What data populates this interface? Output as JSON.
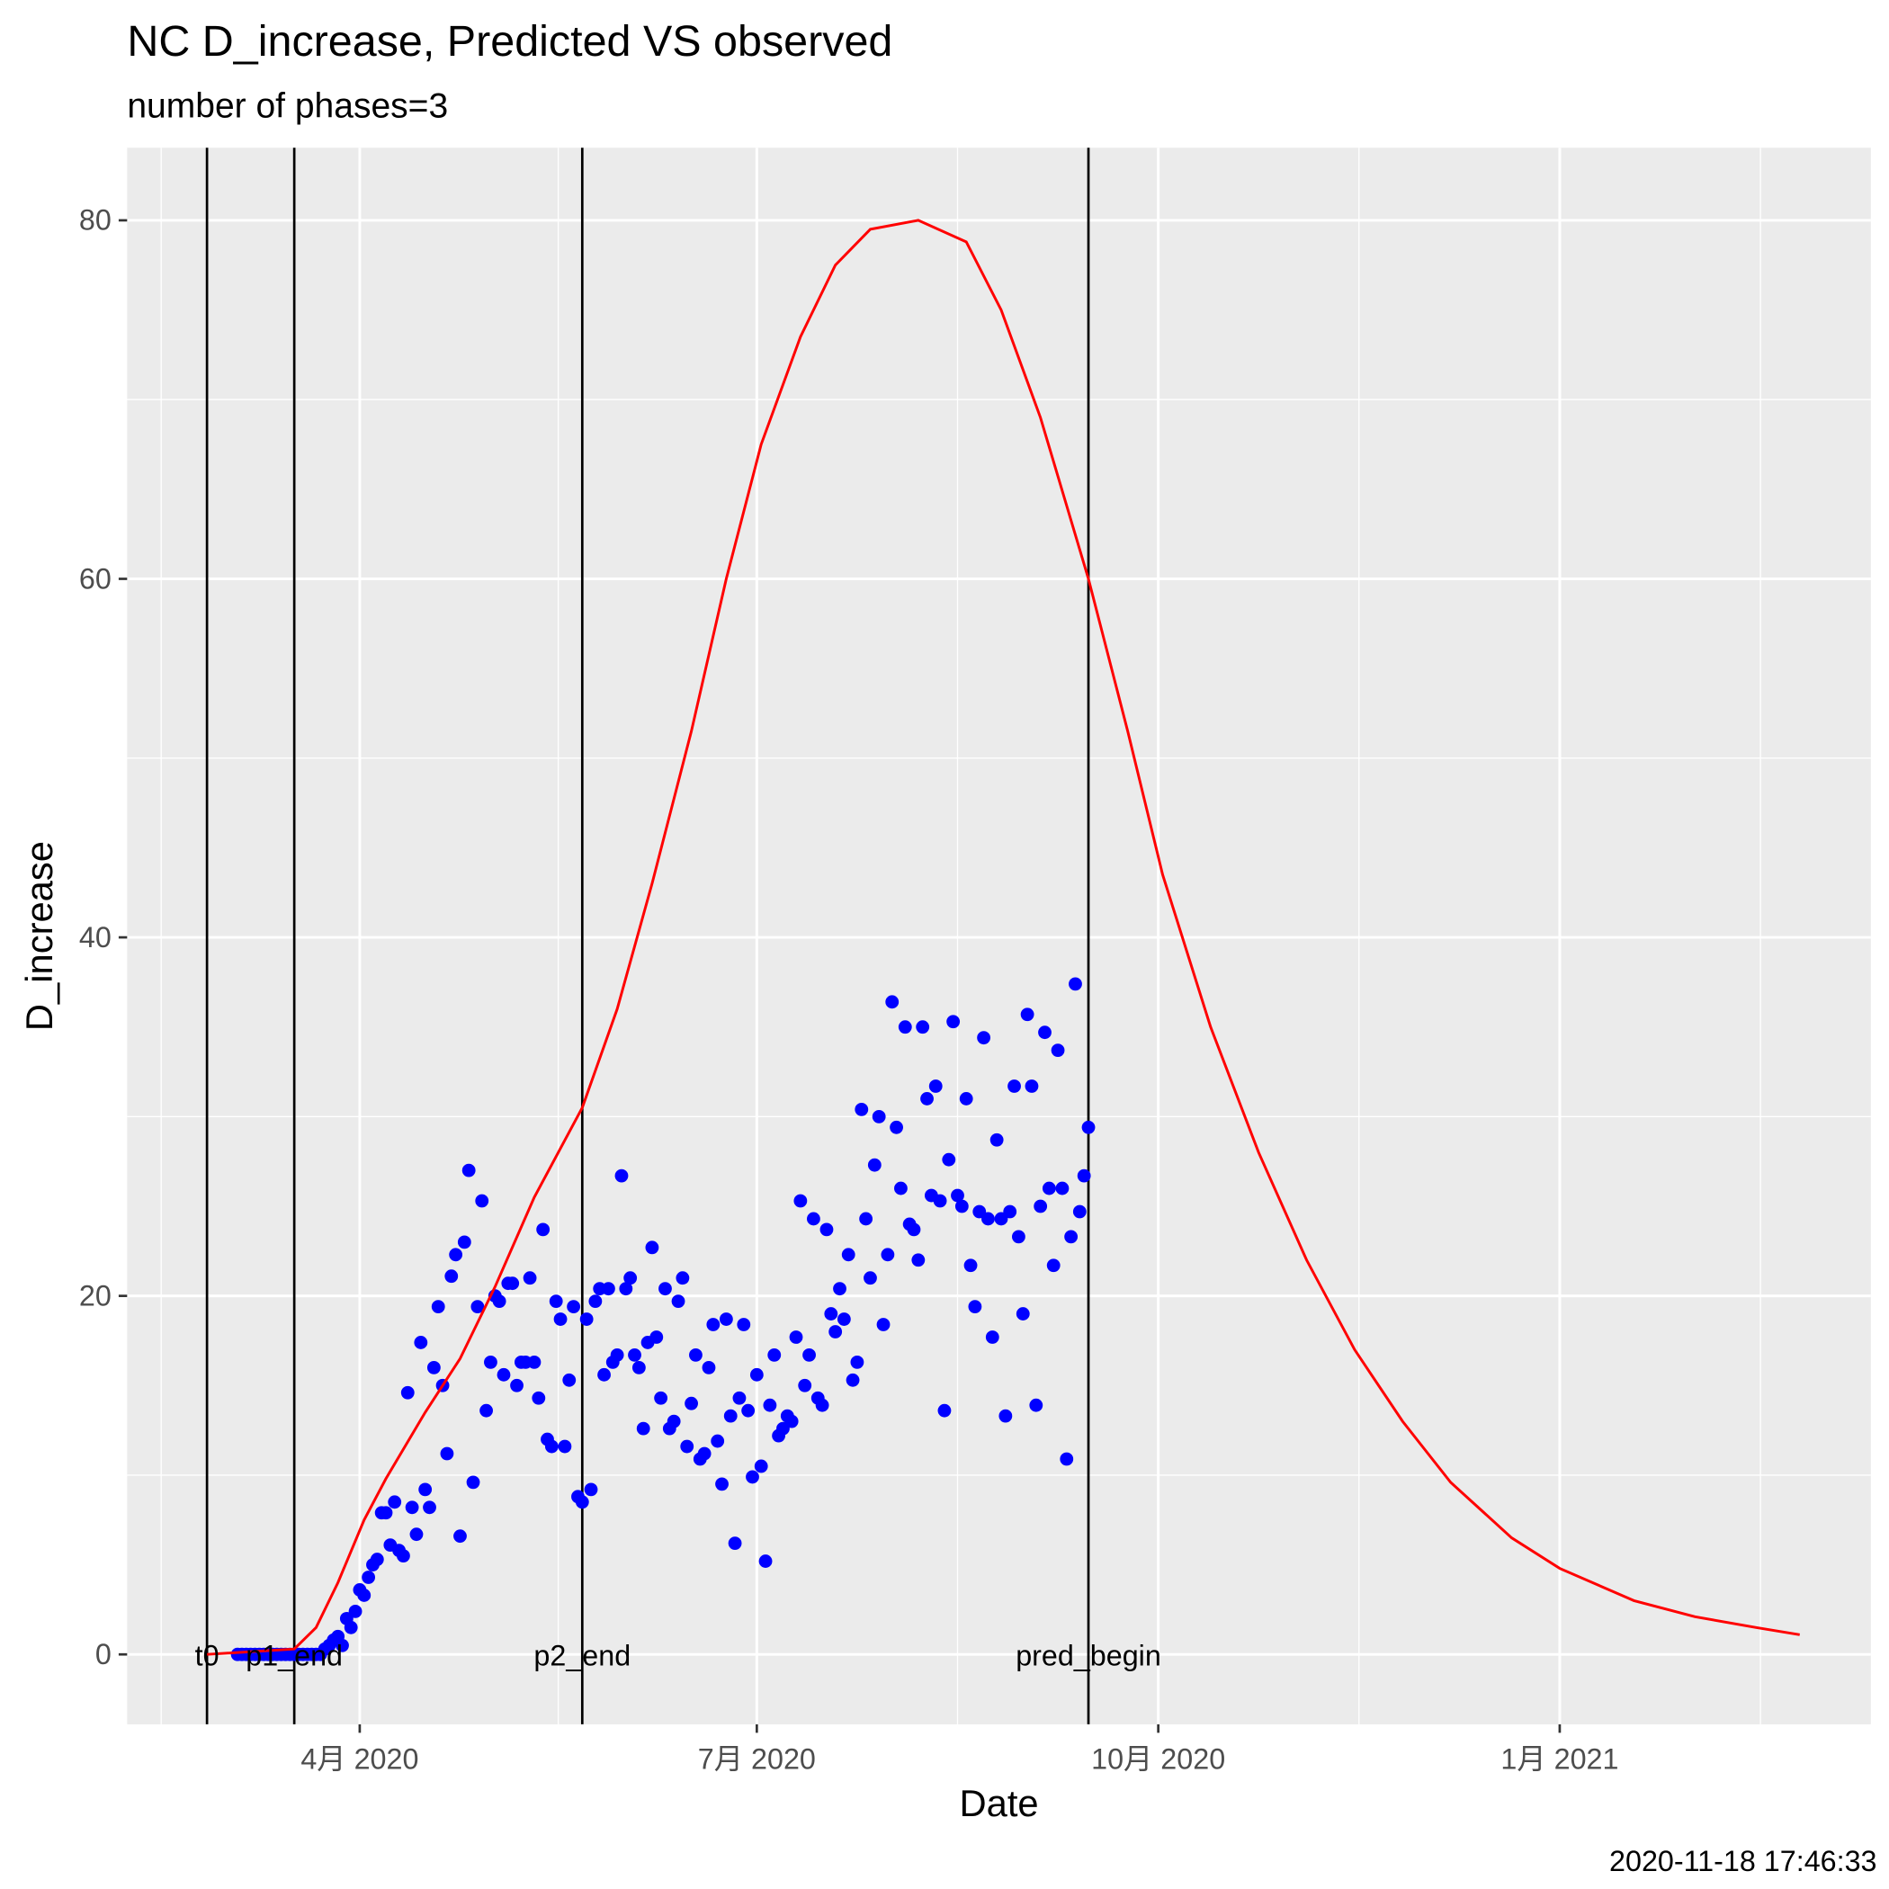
{
  "chart_data": {
    "type": "scatter+line",
    "title": "NC D_increase, Predicted VS observed",
    "subtitle": "number of phases=3",
    "x_label": "Date",
    "y_label": "D_increase",
    "caption": "2020-11-18 17:46:33",
    "xlim": [
      38.7,
      438.3
    ],
    "ylim": [
      -3.9,
      84.05
    ],
    "xticks": [
      {
        "value": 92,
        "label": "4月 2020"
      },
      {
        "value": 183,
        "label": "7月 2020"
      },
      {
        "value": 275,
        "label": "10月 2020"
      },
      {
        "value": 367,
        "label": "1月 2021"
      }
    ],
    "yticks": [
      0,
      20,
      40,
      60,
      80
    ],
    "grid": true,
    "minor_grid": true,
    "vlines": [
      {
        "x": 57,
        "label": "t0"
      },
      {
        "x": 77,
        "label": "p1_end"
      },
      {
        "x": 143,
        "label": "p2_end"
      },
      {
        "x": 259,
        "label": "pred_begin"
      }
    ],
    "series": [
      {
        "type": "scatter",
        "color": "#0000ff",
        "x": [
          64,
          65,
          66,
          67,
          68,
          69,
          70,
          71,
          72,
          73,
          74,
          75,
          76,
          77,
          78,
          79,
          80,
          81,
          82,
          83,
          84,
          85,
          86,
          87,
          88,
          89,
          90,
          91,
          92,
          93,
          94,
          95,
          96,
          97,
          98,
          99,
          100,
          101,
          102,
          103,
          104,
          105,
          106,
          107,
          108,
          109,
          110,
          111,
          112,
          113,
          114,
          115,
          116,
          117,
          118,
          119,
          120,
          121,
          122,
          123,
          124,
          125,
          126,
          127,
          128,
          129,
          130,
          131,
          132,
          133,
          134,
          135,
          136,
          137,
          138,
          139,
          140,
          141,
          142,
          143,
          144,
          145,
          146,
          147,
          148,
          149,
          150,
          151,
          152,
          153,
          154,
          155,
          156,
          157,
          158,
          159,
          160,
          161,
          162,
          163,
          164,
          165,
          166,
          167,
          168,
          169,
          170,
          171,
          172,
          173,
          174,
          175,
          176,
          177,
          178,
          179,
          180,
          181,
          182,
          183,
          184,
          185,
          186,
          187,
          188,
          189,
          190,
          191,
          192,
          193,
          194,
          195,
          196,
          197,
          198,
          199,
          200,
          201,
          202,
          203,
          204,
          205,
          206,
          207,
          208,
          209,
          210,
          211,
          212,
          213,
          214,
          215,
          216,
          217,
          218,
          219,
          220,
          221,
          222,
          223,
          224,
          225,
          226,
          227,
          228,
          229,
          230,
          231,
          232,
          233,
          234,
          235,
          236,
          237,
          238,
          239,
          240,
          241,
          242,
          243,
          244,
          245,
          246,
          247,
          248,
          249,
          250,
          251,
          252,
          253,
          254,
          255,
          256,
          257,
          258,
          259
        ],
        "values": [
          0,
          0,
          0,
          0,
          0,
          0,
          0,
          0,
          0,
          0,
          0,
          0,
          0,
          0,
          0,
          0,
          0,
          0,
          0,
          0,
          0.3,
          0.5,
          0.8,
          1,
          0.5,
          2,
          1.5,
          2.4,
          3.6,
          3.3,
          4.3,
          5,
          5.3,
          7.9,
          7.9,
          6.1,
          8.5,
          5.8,
          5.5,
          14.6,
          8.2,
          6.7,
          17.4,
          9.2,
          8.2,
          16,
          19.4,
          15,
          11.2,
          21.1,
          22.3,
          6.6,
          23,
          27,
          9.6,
          19.4,
          25.3,
          13.6,
          16.3,
          20,
          19.7,
          15.6,
          20.7,
          20.7,
          15,
          16.3,
          16.3,
          21,
          16.3,
          14.3,
          23.7,
          12,
          11.6,
          19.7,
          18.7,
          11.6,
          15.3,
          19.4,
          8.8,
          8.5,
          18.7,
          9.2,
          19.7,
          20.4,
          15.6,
          20.4,
          16.3,
          16.7,
          26.7,
          20.4,
          21,
          16.7,
          16,
          12.6,
          17.4,
          22.7,
          17.7,
          14.3,
          20.4,
          12.6,
          13,
          19.7,
          21,
          11.6,
          14,
          16.7,
          10.9,
          11.2,
          16,
          18.4,
          11.9,
          9.5,
          18.7,
          13.3,
          6.2,
          14.3,
          18.4,
          13.6,
          9.9,
          15.6,
          10.5,
          5.2,
          13.9,
          16.7,
          12.2,
          12.6,
          13.3,
          13,
          17.7,
          25.3,
          15,
          16.7,
          24.3,
          14.3,
          13.9,
          23.7,
          19,
          18,
          20.4,
          18.7,
          22.3,
          15.3,
          16.3,
          30.4,
          24.3,
          21,
          27.3,
          30,
          18.4,
          22.3,
          36.4,
          29.4,
          26,
          35,
          24,
          23.7,
          22,
          35,
          31,
          25.6,
          31.7,
          25.3,
          13.6,
          27.6,
          35.3,
          25.6,
          25,
          31,
          21.7,
          19.4,
          24.7,
          34.4,
          24.3,
          17.7,
          28.7,
          24.3,
          13.3,
          24.7,
          31.7,
          23.3,
          19,
          35.7,
          31.7,
          13.9,
          25,
          34.7,
          26,
          21.7,
          33.7,
          26,
          10.9,
          23.3,
          37.4,
          24.7,
          26.7,
          29.4
        ]
      },
      {
        "type": "line",
        "color": "#ff0000",
        "x": [
          57,
          77,
          82,
          87,
          93,
          98,
          107,
          115,
          123,
          132,
          143,
          151,
          159,
          168,
          176,
          184,
          193,
          201,
          209,
          220,
          231,
          239,
          248,
          259,
          268,
          276,
          287,
          298,
          309,
          320,
          331,
          342,
          356,
          367,
          384,
          398,
          412,
          422
        ],
        "values": [
          0,
          0.3,
          1.5,
          4,
          7.5,
          9.8,
          13.5,
          16.5,
          20.5,
          25.5,
          30.5,
          36,
          43,
          51.5,
          60,
          67.5,
          73.5,
          77.5,
          79.5,
          80,
          78.8,
          75,
          69,
          60,
          51.5,
          43.5,
          35,
          28,
          22,
          17,
          13,
          9.6,
          6.5,
          4.8,
          3,
          2.1,
          1.5,
          1.1
        ]
      }
    ]
  }
}
